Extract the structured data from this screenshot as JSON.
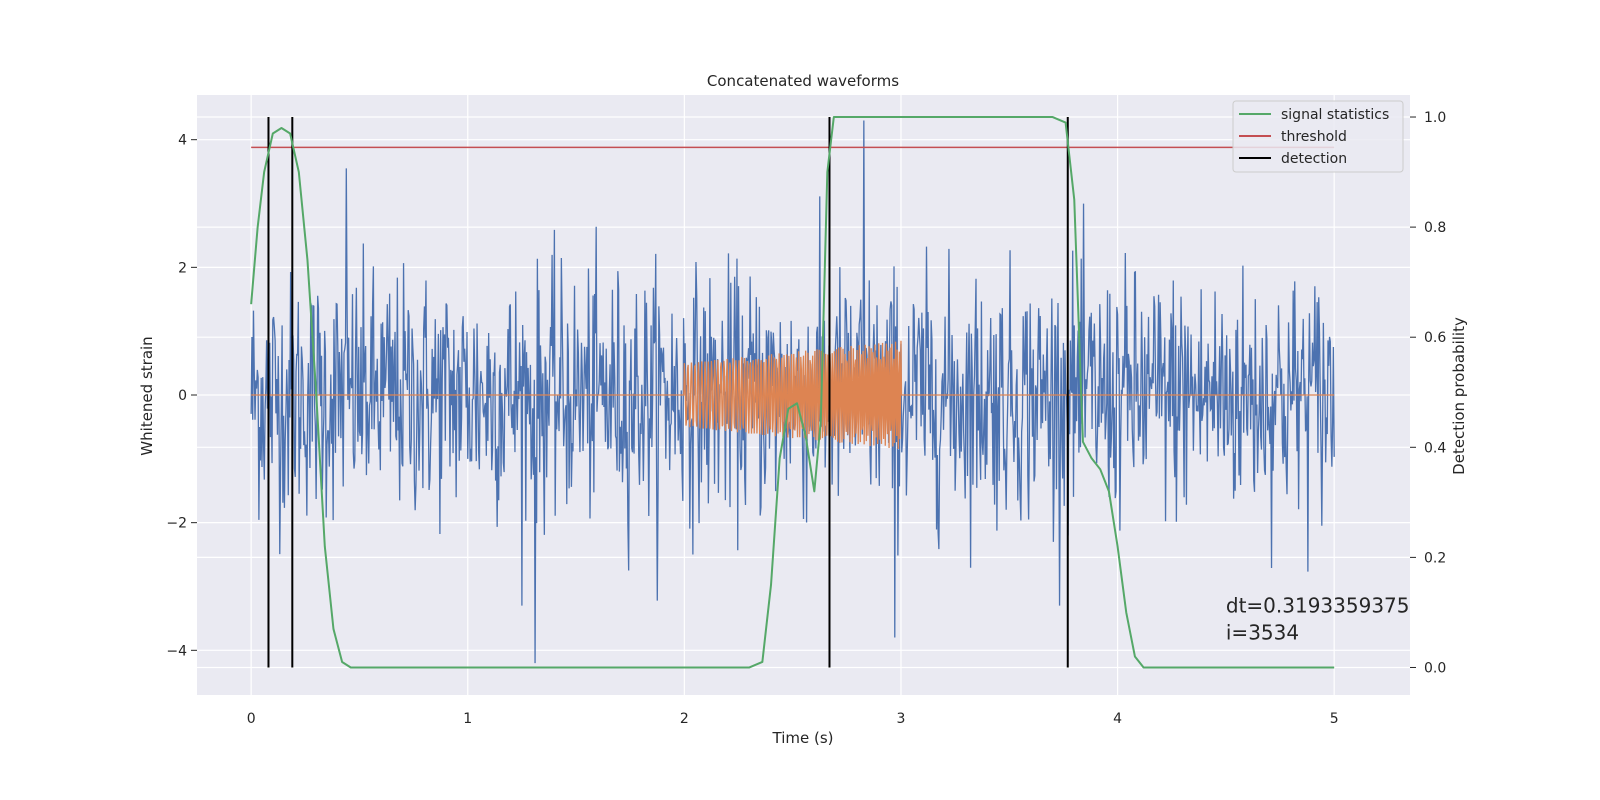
{
  "chart_data": {
    "type": "line",
    "title": "Concatenated waveforms",
    "xlabel": "Time (s)",
    "ylabel": "Whitened strain",
    "ylabel_right": "Detection probability",
    "xlim": [
      -0.25,
      5.35
    ],
    "ylim": [
      -4.7,
      4.7
    ],
    "ylim_right": [
      -0.05,
      1.04
    ],
    "x_ticks": [
      0,
      1,
      2,
      3,
      4,
      5
    ],
    "y_ticks": [
      -4,
      -2,
      0,
      2,
      4
    ],
    "y_ticks_right": [
      0.0,
      0.2,
      0.4,
      0.6,
      0.8,
      1.0
    ],
    "x_tick_labels": [
      "0",
      "1",
      "2",
      "3",
      "4",
      "5"
    ],
    "y_tick_labels": [
      "−4",
      "−2",
      "0",
      "2",
      "4"
    ],
    "y_tick_labels_right": [
      "0.0",
      "0.2",
      "0.4",
      "0.6",
      "0.8",
      "1.0"
    ],
    "grid": true,
    "legend_position": "top-right",
    "legend": [
      {
        "label": "signal statistics",
        "color": "#55a868"
      },
      {
        "label": "threshold",
        "color": "#c44e52"
      },
      {
        "label": "detection",
        "color": "#000000"
      }
    ],
    "series": [
      {
        "kind": "noise",
        "color": "#4c72b0",
        "x_range": [
          0,
          5
        ],
        "typical_amplitude": 1.5,
        "notable_peaks": [
          {
            "x": 0.44,
            "y": 3.55
          },
          {
            "x": 1.31,
            "y": -4.2
          },
          {
            "x": 2.83,
            "y": 4.3
          },
          {
            "x": 2.97,
            "y": -3.8
          }
        ]
      },
      {
        "kind": "chirp",
        "color": "#dd8452",
        "x_range": [
          0,
          5
        ],
        "chirp_x_range": [
          2.0,
          3.0
        ],
        "amplitude_start": 0.5,
        "amplitude_end": 0.85
      },
      {
        "name": "signal statistics",
        "color": "#55a868",
        "axis": "right",
        "x": [
          0.0,
          0.03,
          0.06,
          0.1,
          0.14,
          0.18,
          0.22,
          0.26,
          0.3,
          0.34,
          0.38,
          0.42,
          0.46,
          0.5,
          1.0,
          2.0,
          2.3,
          2.36,
          2.4,
          2.44,
          2.48,
          2.52,
          2.56,
          2.6,
          2.63,
          2.66,
          2.69,
          2.72,
          2.8,
          3.0,
          3.5,
          3.7,
          3.76,
          3.8,
          3.84,
          3.88,
          3.92,
          3.96,
          4.0,
          4.04,
          4.08,
          4.12,
          4.5,
          5.0
        ],
        "y": [
          0.66,
          0.8,
          0.9,
          0.97,
          0.98,
          0.97,
          0.9,
          0.74,
          0.5,
          0.22,
          0.07,
          0.01,
          0.0,
          0.0,
          0.0,
          0.0,
          0.0,
          0.01,
          0.15,
          0.38,
          0.47,
          0.48,
          0.42,
          0.32,
          0.45,
          0.9,
          1.0,
          1.0,
          1.0,
          1.0,
          1.0,
          1.0,
          0.99,
          0.85,
          0.41,
          0.38,
          0.36,
          0.32,
          0.22,
          0.1,
          0.02,
          0.0,
          0.0,
          0.0
        ]
      }
    ],
    "threshold": {
      "y": 3.88,
      "x_range": [
        0,
        5
      ],
      "color": "#c44e52"
    },
    "detections": {
      "x": [
        0.08,
        0.19,
        2.67,
        3.77
      ],
      "y_range": [
        0.0,
        1.0
      ],
      "color": "#000000"
    },
    "annotation": {
      "text": "dt=0.3193359375\n i=3534",
      "x": 4.5,
      "y": 0.1
    }
  }
}
